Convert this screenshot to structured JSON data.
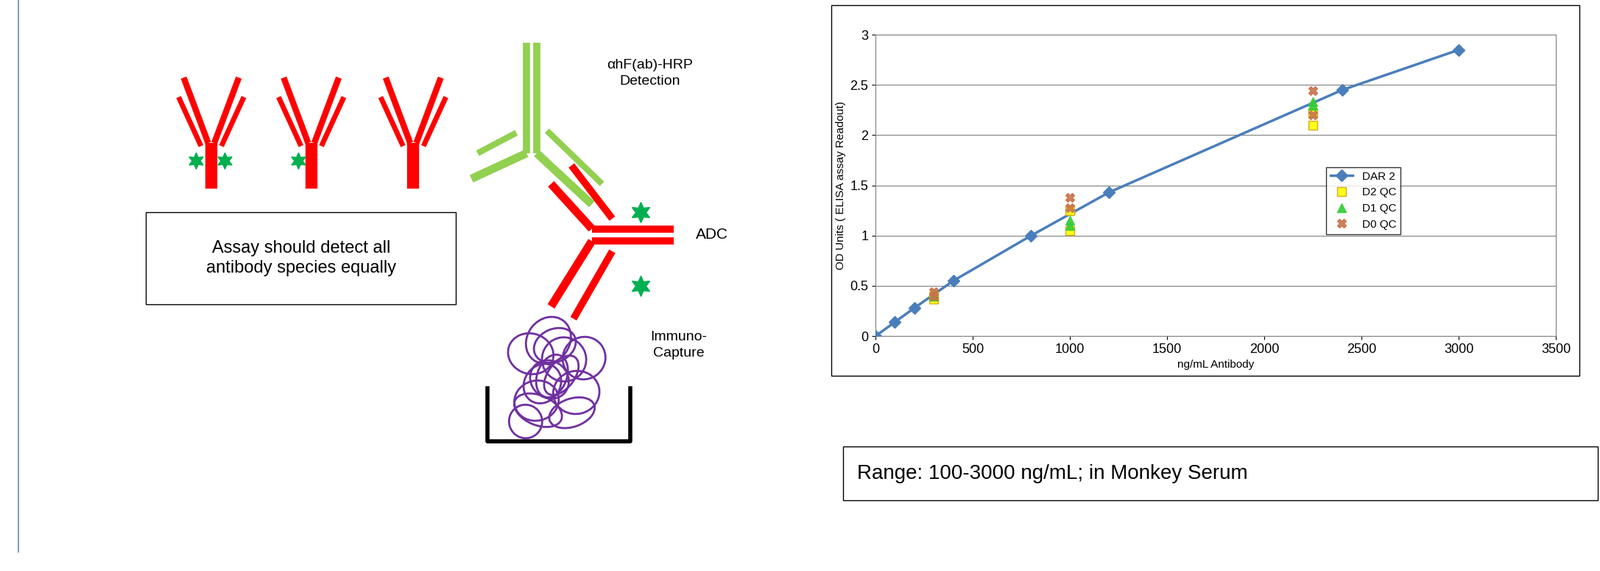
{
  "chart_data": {
    "type": "line",
    "x_label": "ng/mL Antibody",
    "y_label": "OD Units ( ELISA assay Readout)",
    "xlim": [
      0,
      3500
    ],
    "xticks": [
      0,
      500,
      1000,
      1500,
      2000,
      2500,
      3000,
      3500
    ],
    "ylim": [
      0,
      3
    ],
    "yticks": [
      0,
      0.5,
      1,
      1.5,
      2,
      2.5,
      3
    ],
    "grid": true,
    "legend": "center right",
    "series": [
      {
        "name": "DAR 2",
        "type": "line",
        "color": "#4a7ebb",
        "marker": "diamond",
        "line_style": "solid",
        "x": [
          0,
          100,
          200,
          400,
          800,
          1200,
          2400,
          3000
        ],
        "values": [
          0,
          0.14,
          0.28,
          0.55,
          1.0,
          1.43,
          2.45,
          2.85
        ]
      },
      {
        "name": "D2 QC",
        "type": "scatter",
        "color": "#ffff00",
        "marker": "square",
        "line_style": "none",
        "x": [
          300,
          300,
          1000,
          1000,
          2250,
          2250
        ],
        "values": [
          0.37,
          0.4,
          1.05,
          1.25,
          2.1,
          2.22
        ]
      },
      {
        "name": "D1 QC",
        "type": "scatter",
        "color": "#33cc33",
        "marker": "triangle",
        "line_style": "none",
        "x": [
          300,
          300,
          1000,
          1000,
          2250,
          2250
        ],
        "values": [
          0.4,
          0.42,
          1.1,
          1.15,
          2.3,
          2.33
        ]
      },
      {
        "name": "D0 QC",
        "type": "scatter",
        "color": "#c8734a",
        "marker": "x",
        "line_style": "none",
        "x": [
          300,
          300,
          1000,
          1000,
          2250,
          2250
        ],
        "values": [
          0.4,
          0.44,
          1.28,
          1.38,
          2.2,
          2.44
        ]
      }
    ]
  },
  "caption": "Range: 100-3000 ng/mL; in Monkey Serum",
  "diagram": {
    "note": "Assay should detect all\nantibody species equally",
    "detection_label": "αhF(ab)-HRP\nDetection",
    "adc_label": "ADC",
    "capture_label": "Immuno-\nCapture"
  }
}
